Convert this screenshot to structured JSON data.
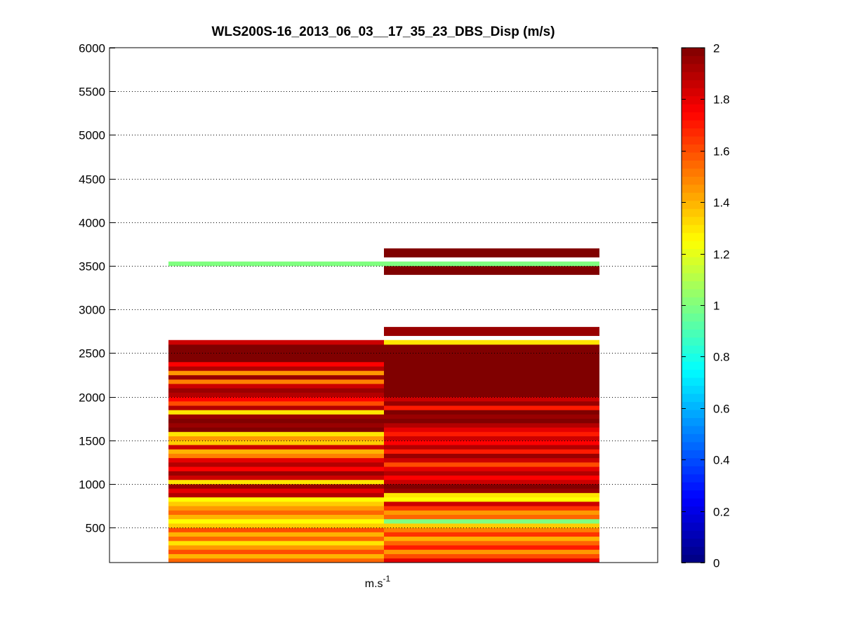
{
  "chart_data": {
    "type": "heatmap",
    "title": "WLS200S-16_2013_06_03__17_35_23_DBS_Disp (m/s)",
    "xlabel_base": "m.s",
    "xlabel_sup": "-1",
    "ylabel": "",
    "ylim": [
      100,
      6000
    ],
    "yticks": [
      500,
      1000,
      1500,
      2000,
      2500,
      3000,
      3500,
      4000,
      4500,
      5000,
      5500,
      6000
    ],
    "grid": "y-dotted",
    "colormap": "jet",
    "clim": [
      0,
      2
    ],
    "colorbar_ticks": [
      0,
      0.2,
      0.4,
      0.6,
      0.8,
      1,
      1.2,
      1.4,
      1.6,
      1.8,
      2
    ],
    "colorbar_position": "right",
    "columns": 2,
    "bin_height": 50,
    "series": [
      {
        "bins": [
          [
            100,
            1.55
          ],
          [
            150,
            1.4
          ],
          [
            200,
            1.6
          ],
          [
            250,
            1.45
          ],
          [
            300,
            1.3
          ],
          [
            350,
            1.55
          ],
          [
            400,
            1.4
          ],
          [
            450,
            1.6
          ],
          [
            500,
            1.35
          ],
          [
            550,
            1.25
          ],
          [
            600,
            1.4
          ],
          [
            650,
            1.55
          ],
          [
            700,
            1.45
          ],
          [
            750,
            1.35
          ],
          [
            800,
            1.25
          ],
          [
            850,
            1.9
          ],
          [
            900,
            1.8
          ],
          [
            950,
            1.95
          ],
          [
            1000,
            1.3
          ],
          [
            1050,
            1.85
          ],
          [
            1100,
            1.95
          ],
          [
            1150,
            1.75
          ],
          [
            1200,
            1.9
          ],
          [
            1250,
            1.8
          ],
          [
            1300,
            1.5
          ],
          [
            1350,
            1.4
          ],
          [
            1400,
            1.85
          ],
          [
            1450,
            1.35
          ],
          [
            1500,
            1.45
          ],
          [
            1550,
            1.3
          ],
          [
            1600,
            2.0
          ],
          [
            1650,
            1.95
          ],
          [
            1700,
            2.0
          ],
          [
            1750,
            1.95
          ],
          [
            1800,
            1.3
          ],
          [
            1850,
            1.9
          ],
          [
            1900,
            1.6
          ],
          [
            1950,
            1.75
          ],
          [
            2000,
            1.9
          ],
          [
            2050,
            1.95
          ],
          [
            2100,
            1.85
          ],
          [
            2150,
            1.5
          ],
          [
            2200,
            1.95
          ],
          [
            2250,
            1.45
          ],
          [
            2300,
            1.9
          ],
          [
            2350,
            1.75
          ],
          [
            2400,
            2.0
          ],
          [
            2450,
            2.0
          ],
          [
            2500,
            2.0
          ],
          [
            2550,
            2.0
          ],
          [
            2600,
            1.85
          ],
          [
            3500,
            1.0
          ]
        ]
      },
      {
        "bins": [
          [
            100,
            1.8
          ],
          [
            150,
            1.6
          ],
          [
            200,
            1.45
          ],
          [
            250,
            1.7
          ],
          [
            300,
            1.55
          ],
          [
            350,
            1.4
          ],
          [
            400,
            1.65
          ],
          [
            450,
            1.5
          ],
          [
            500,
            1.35
          ],
          [
            550,
            1.0
          ],
          [
            600,
            1.55
          ],
          [
            650,
            1.45
          ],
          [
            700,
            1.65
          ],
          [
            750,
            1.85
          ],
          [
            800,
            1.25
          ],
          [
            850,
            1.3
          ],
          [
            900,
            1.95
          ],
          [
            950,
            2.0
          ],
          [
            1000,
            1.85
          ],
          [
            1050,
            1.75
          ],
          [
            1100,
            1.9
          ],
          [
            1150,
            1.8
          ],
          [
            1200,
            1.6
          ],
          [
            1250,
            1.85
          ],
          [
            1300,
            1.95
          ],
          [
            1350,
            1.7
          ],
          [
            1400,
            1.9
          ],
          [
            1450,
            1.75
          ],
          [
            1500,
            1.85
          ],
          [
            1550,
            1.7
          ],
          [
            1600,
            1.8
          ],
          [
            1650,
            1.9
          ],
          [
            1700,
            2.0
          ],
          [
            1750,
            1.95
          ],
          [
            1800,
            2.0
          ],
          [
            1850,
            1.7
          ],
          [
            1900,
            1.95
          ],
          [
            1950,
            1.85
          ],
          [
            2000,
            2.0
          ],
          [
            2050,
            2.0
          ],
          [
            2100,
            2.0
          ],
          [
            2150,
            2.0
          ],
          [
            2200,
            2.0
          ],
          [
            2250,
            2.0
          ],
          [
            2300,
            2.0
          ],
          [
            2350,
            2.0
          ],
          [
            2400,
            2.0
          ],
          [
            2450,
            2.0
          ],
          [
            2500,
            2.0
          ],
          [
            2550,
            2.0
          ],
          [
            2600,
            1.3
          ],
          [
            2700,
            1.95
          ],
          [
            2750,
            1.95
          ],
          [
            3400,
            2.0
          ],
          [
            3450,
            2.0
          ],
          [
            3500,
            1.0
          ],
          [
            3600,
            2.0
          ],
          [
            3650,
            2.0
          ]
        ]
      }
    ]
  }
}
